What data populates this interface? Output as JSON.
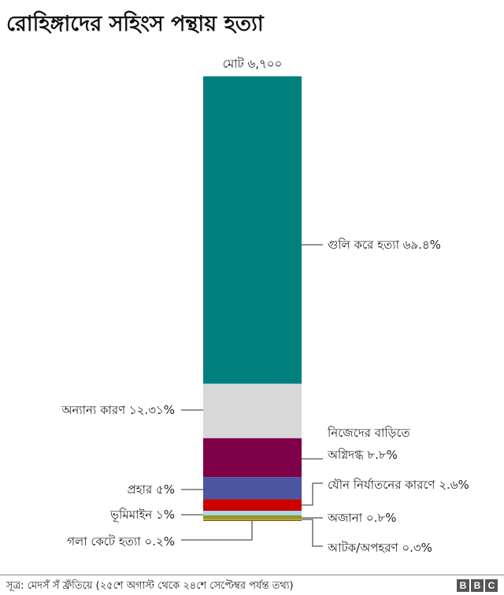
{
  "chart_data": {
    "type": "bar",
    "stacked": true,
    "title": "রোহিঙ্গাদের সহিংস পন্থায় হত্যা",
    "total_label": "মোট ৬,৭০০",
    "total": 6700,
    "unit": "%",
    "series": [
      {
        "name": "গুলি করে হত্যা",
        "label": "গুলি করে হত্যা ৬৯.৪%",
        "value": 69.4,
        "color": "#007f7f",
        "side": "right"
      },
      {
        "name": "অন্যান্য কারণ",
        "label": "অন্যান্য কারণ ১২.৩১%",
        "value": 12.31,
        "color": "#d9d9d9",
        "side": "left"
      },
      {
        "name": "নিজেদের বাড়িতে অগ্নিদগ্ধ",
        "label": "নিজেদের বাড়িতে\nঅগ্নিদগ্ধ ৮.৮%",
        "value": 8.8,
        "color": "#7d0049",
        "side": "right"
      },
      {
        "name": "প্রহার",
        "label": "প্রহার ৫%",
        "value": 5,
        "color": "#4b55a0",
        "side": "left"
      },
      {
        "name": "যৌন নির্যাতনের কারণে",
        "label": "যৌন নির্যাতনের কারণে ২.৬%",
        "value": 2.6,
        "color": "#cc0000",
        "side": "right"
      },
      {
        "name": "ভূমিমাইন",
        "label": "ভূমিমাইন ১%",
        "value": 1,
        "color": "#a8d8e8",
        "side": "left"
      },
      {
        "name": "অজানা",
        "label": "অজানা ০.৮%",
        "value": 0.8,
        "color": "#8a9a2a",
        "side": "right"
      },
      {
        "name": "আটক/অপহরণ",
        "label": "আটক/অপহরণ ০.৩%",
        "value": 0.3,
        "color": "#c09a1a",
        "side": "right"
      },
      {
        "name": "গলা কেটে হত্যা",
        "label": "গলা কেটে হত্যা ০.২%",
        "value": 0.2,
        "color": "#8a5a1a",
        "side": "left"
      }
    ]
  },
  "footer": {
    "source": "সূত্র: মেদসঁ সঁ ফ্রঁতিয়ে (২৫শে অগাস্ট থেকে ২৪শে সেপ্টেম্বর পর্যন্ত তথ্য)",
    "logo": [
      "B",
      "B",
      "C"
    ]
  }
}
